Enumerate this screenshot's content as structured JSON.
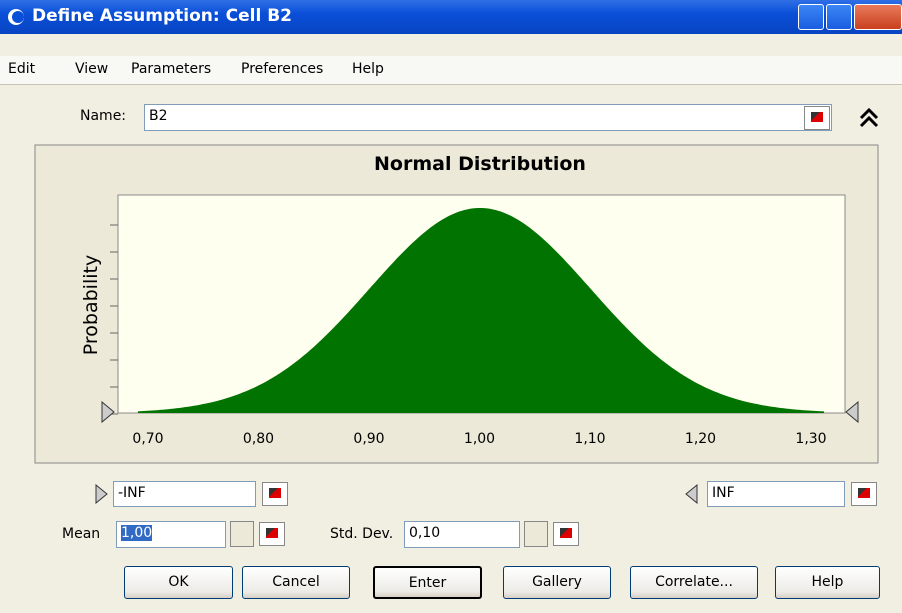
{
  "window": {
    "title": "Define Assumption: Cell B2"
  },
  "menu": [
    "Edit",
    "View",
    "Parameters",
    "Preferences",
    "Help"
  ],
  "name_field": {
    "label": "Name:",
    "value": "B2"
  },
  "chart": {
    "title": "Normal Distribution",
    "y_label": "Probability",
    "x_labels": [
      "0,70",
      "0,80",
      "0,90",
      "1,00",
      "1,10",
      "1,20",
      "1,30"
    ]
  },
  "bounds": {
    "lower": "-INF",
    "upper": "INF"
  },
  "parameters": {
    "mean": {
      "label": "Mean",
      "value": "1,00"
    },
    "std_dev": {
      "label": "Std. Dev.",
      "value": "0,10"
    }
  },
  "buttons": [
    "OK",
    "Cancel",
    "Enter",
    "Gallery",
    "Correlate...",
    "Help"
  ]
}
